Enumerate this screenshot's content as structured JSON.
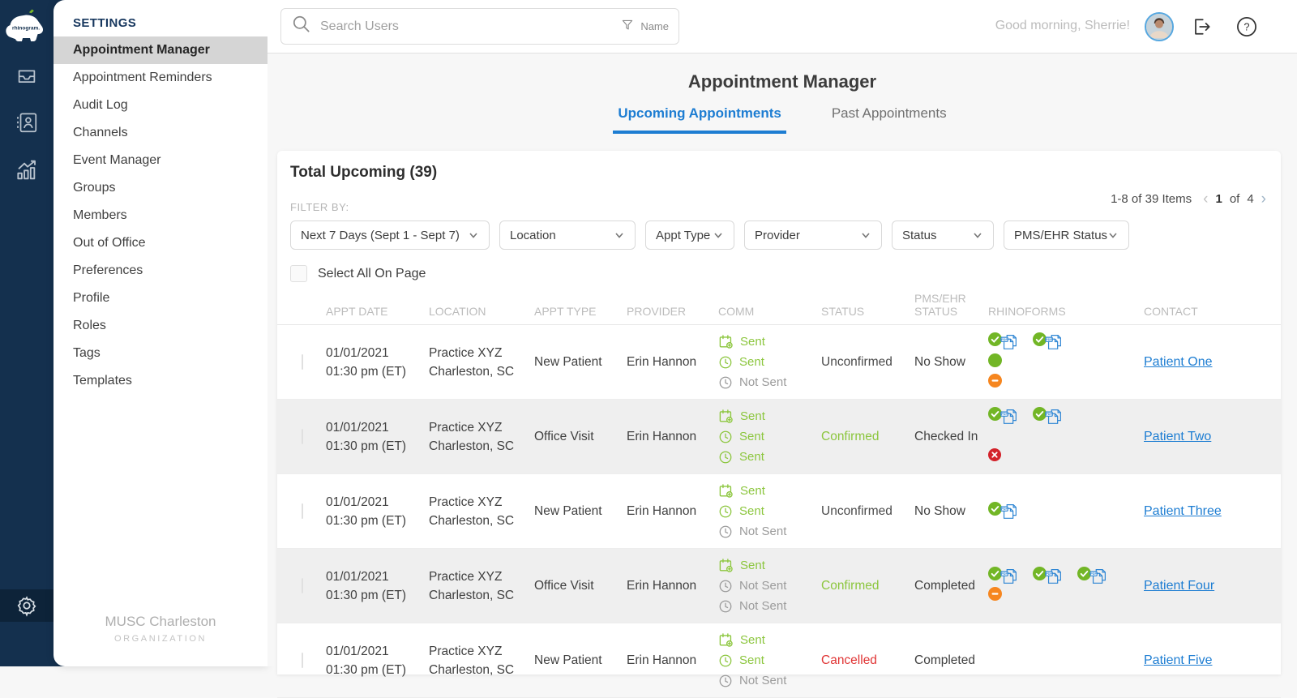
{
  "brand": {
    "logo_text": "rhinogram.",
    "org_name": "MUSC Charleston",
    "org_label": "ORGANIZATION"
  },
  "rail": {
    "icons": [
      "inbox-icon",
      "contacts-icon",
      "analytics-icon",
      "gear-icon"
    ]
  },
  "sidebar": {
    "title": "SETTINGS",
    "items": [
      {
        "label": "Appointment Manager",
        "active": true
      },
      {
        "label": "Appointment Reminders",
        "active": false
      },
      {
        "label": "Audit Log",
        "active": false
      },
      {
        "label": "Channels",
        "active": false
      },
      {
        "label": "Event Manager",
        "active": false
      },
      {
        "label": "Groups",
        "active": false
      },
      {
        "label": "Members",
        "active": false
      },
      {
        "label": "Out of Office",
        "active": false
      },
      {
        "label": "Preferences",
        "active": false
      },
      {
        "label": "Profile",
        "active": false
      },
      {
        "label": "Roles",
        "active": false
      },
      {
        "label": "Tags",
        "active": false
      },
      {
        "label": "Templates",
        "active": false
      }
    ]
  },
  "topbar": {
    "search_placeholder": "Search Users",
    "search_filter_label": "Name",
    "greeting": "Good morning, Sherrie!"
  },
  "page": {
    "title": "Appointment Manager",
    "tabs": [
      {
        "label": "Upcoming Appointments",
        "active": true
      },
      {
        "label": "Past Appointments",
        "active": false
      }
    ]
  },
  "card": {
    "total_label": "Total Upcoming (39)",
    "filter_by_label": "FILTER BY:",
    "filters": [
      "Next 7 Days  (Sept 1 - Sept 7)",
      "Location",
      "Appt Type",
      "Provider",
      "Status",
      "PMS/EHR Status"
    ],
    "pagination": {
      "items_label": "1-8 of 39 Items",
      "page": "1",
      "of_label": "of",
      "total_pages": "4"
    },
    "select_all_label": "Select All On Page",
    "columns": [
      "APPT DATE",
      "LOCATION",
      "APPT TYPE",
      "PROVIDER",
      "COMM",
      "STATUS",
      "PMS/EHR STATUS",
      "RHINOFORMS",
      "CONTACT"
    ],
    "rows": [
      {
        "date": "01/01/2021",
        "time": "01:30 pm (ET)",
        "location1": "Practice XYZ",
        "location2": "Charleston, SC",
        "appt_type": "New Patient",
        "provider": "Erin Hannon",
        "comm": [
          {
            "icon": "calendar-icon",
            "label": "Sent",
            "sent": true
          },
          {
            "icon": "clock-icon",
            "label": "Sent",
            "sent": true
          },
          {
            "icon": "clock-icon",
            "label": "Not Sent",
            "sent": false
          }
        ],
        "status": {
          "text": "Unconfirmed",
          "tone": "default"
        },
        "pms_status": "No Show",
        "forms": [
          [
            "form-accepted",
            "form-accepted"
          ],
          [
            "dot-green"
          ],
          [
            "minus-orange"
          ]
        ],
        "contact": "Patient One",
        "shaded": false
      },
      {
        "date": "01/01/2021",
        "time": "01:30 pm (ET)",
        "location1": "Practice XYZ",
        "location2": "Charleston, SC",
        "appt_type": "Office Visit",
        "provider": "Erin Hannon",
        "comm": [
          {
            "icon": "calendar-icon",
            "label": "Sent",
            "sent": true
          },
          {
            "icon": "clock-icon",
            "label": "Sent",
            "sent": true
          },
          {
            "icon": "clock-icon",
            "label": "Sent",
            "sent": true
          }
        ],
        "status": {
          "text": "Confirmed",
          "tone": "green"
        },
        "pms_status": "Checked In",
        "forms": [
          [
            "form-accepted",
            "form-accepted"
          ],
          [],
          [
            "x-red"
          ]
        ],
        "contact": "Patient Two",
        "shaded": true
      },
      {
        "date": "01/01/2021",
        "time": "01:30 pm (ET)",
        "location1": "Practice XYZ",
        "location2": "Charleston, SC",
        "appt_type": "New Patient",
        "provider": "Erin Hannon",
        "comm": [
          {
            "icon": "calendar-icon",
            "label": "Sent",
            "sent": true
          },
          {
            "icon": "clock-icon",
            "label": "Sent",
            "sent": true
          },
          {
            "icon": "clock-icon",
            "label": "Not Sent",
            "sent": false
          }
        ],
        "status": {
          "text": "Unconfirmed",
          "tone": "default"
        },
        "pms_status": "No Show",
        "forms": [
          [
            "form-accepted"
          ]
        ],
        "contact": "Patient Three",
        "shaded": false
      },
      {
        "date": "01/01/2021",
        "time": "01:30 pm (ET)",
        "location1": "Practice XYZ",
        "location2": "Charleston, SC",
        "appt_type": "Office Visit",
        "provider": "Erin Hannon",
        "comm": [
          {
            "icon": "calendar-icon",
            "label": "Sent",
            "sent": true
          },
          {
            "icon": "clock-icon",
            "label": "Not Sent",
            "sent": false
          },
          {
            "icon": "clock-icon",
            "label": "Not Sent",
            "sent": false
          }
        ],
        "status": {
          "text": "Confirmed",
          "tone": "green"
        },
        "pms_status": "Completed",
        "forms": [
          [
            "form-accepted",
            "form-accepted",
            "form-accepted"
          ],
          [
            "minus-orange"
          ]
        ],
        "contact": "Patient Four",
        "shaded": true
      },
      {
        "date": "01/01/2021",
        "time": "01:30 pm (ET)",
        "location1": "Practice XYZ",
        "location2": "Charleston, SC",
        "appt_type": "New Patient",
        "provider": "Erin Hannon",
        "comm": [
          {
            "icon": "calendar-icon",
            "label": "Sent",
            "sent": true
          },
          {
            "icon": "clock-icon",
            "label": "Sent",
            "sent": true
          },
          {
            "icon": "clock-icon",
            "label": "Not Sent",
            "sent": false
          }
        ],
        "status": {
          "text": "Cancelled",
          "tone": "red"
        },
        "pms_status": "Completed",
        "forms": [],
        "contact": "Patient Five",
        "shaded": false
      }
    ]
  },
  "icons": {
    "search-icon": "magnifier",
    "filter-funnel-icon": "funnel",
    "logout-icon": "door-with-arrow",
    "help-icon": "question-mark-circle",
    "calendar-icon": "calendar-plus",
    "clock-icon": "clock",
    "form-accepted": "green-check-circle + blue-pdf-pages",
    "dot-green": "solid-green-circle",
    "minus-orange": "orange-circle-minus",
    "x-red": "red-circle-x",
    "chevron-down-icon": "v",
    "chevron-left-icon": "‹",
    "chevron-right-icon": "›"
  },
  "colors": {
    "navy": "#14304e",
    "navy_dark": "#0d2339",
    "accent_blue": "#1d7dd2",
    "green": "#8cc63e",
    "check_green": "#72b626",
    "orange": "#f6861f",
    "red": "#d3222a",
    "row_shade": "#efefef"
  }
}
